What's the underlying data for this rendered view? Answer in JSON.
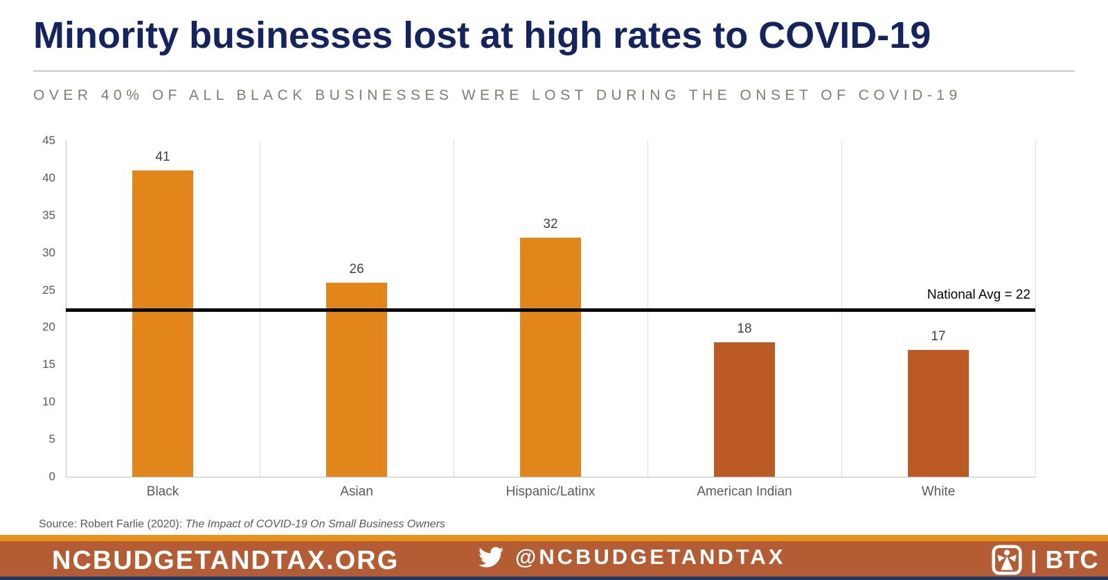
{
  "title": "Minority businesses lost at high rates to COVID-19",
  "subtitle": "OVER 40% OF ALL BLACK BUSINESSES WERE LOST DURING THE ONSET OF COVID-19",
  "chart_data": {
    "type": "bar",
    "categories": [
      "Black",
      "Asian",
      "Hispanic/Latinx",
      "American Indian",
      "White"
    ],
    "values": [
      41,
      26,
      32,
      18,
      17
    ],
    "data_labels": [
      "41",
      "26",
      "32",
      "18",
      "17"
    ],
    "bar_colors": [
      "#E2861B",
      "#E2861B",
      "#E2861B",
      "#BC5A26",
      "#BC5A26"
    ],
    "title": "",
    "xlabel": "",
    "ylabel": "",
    "ylim": [
      0,
      45
    ],
    "yticks": [
      0,
      5,
      10,
      15,
      20,
      25,
      30,
      35,
      40,
      45
    ],
    "grid": "vertical category separators, light gray",
    "legend": "none",
    "reference_line": {
      "line_value": 22.4,
      "label": "National Avg = 22",
      "color": "#000000"
    }
  },
  "source": {
    "prefix": "Source: Robert Farlie (2020): ",
    "work": "The Impact of COVID-19 On Small Business Owners"
  },
  "footer": {
    "website": "NCBUDGETANDTAX.ORG",
    "twitter_handle": "@NCBUDGETANDTAX",
    "logo_separator": "|",
    "logo_text": "BTC"
  },
  "colors": {
    "title_navy": "#14245E",
    "subtitle_gray": "#7D7D74",
    "axis_text": "#595959",
    "value_text": "#404040",
    "bar_orange": "#E2861B",
    "bar_rust": "#BC5A26",
    "gridline": "#D9D9D9",
    "footer_stripe_orange": "#E8921E",
    "footer_band_rust": "#B45C33",
    "footer_bottom_navy": "#203864"
  }
}
